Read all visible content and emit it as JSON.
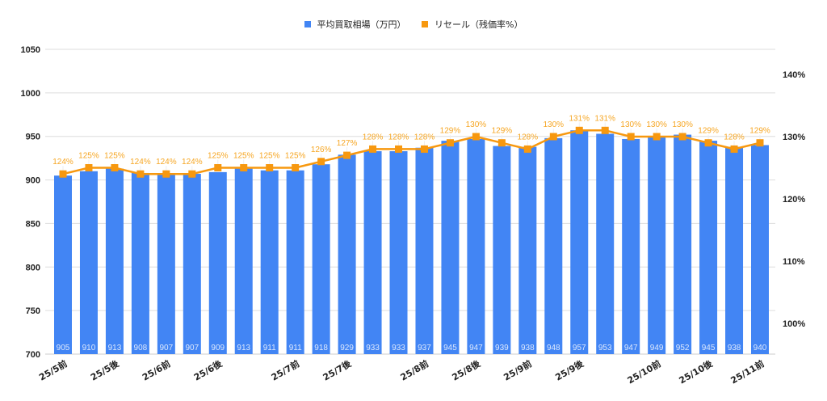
{
  "legend": {
    "series1_label": "平均買取相場（万円）",
    "series2_label": "リセール（残価率%）"
  },
  "colors": {
    "bar": "#4285f4",
    "line": "#f7980f",
    "line_label": "#f6a623",
    "bar_label": "#dce8fd",
    "grid": "#dddddd",
    "axis_text": "#222222"
  },
  "chart_data": {
    "type": "bar+line",
    "title": "",
    "xlabel": "",
    "ylabel_left": "平均買取相場（万円）",
    "ylabel_right": "リセール（残価率%）",
    "ylim_left": [
      700,
      1050
    ],
    "yticks_left": [
      700,
      750,
      800,
      850,
      900,
      950,
      1000,
      1050
    ],
    "ylim_right": [
      95,
      140
    ],
    "yticks_right": [
      "100%",
      "110%",
      "120%",
      "130%",
      "140%"
    ],
    "grid": true,
    "legend_position": "top",
    "x_tick_labels": [
      {
        "index": 0,
        "label": "25/5前"
      },
      {
        "index": 2,
        "label": "25/5後"
      },
      {
        "index": 4,
        "label": "25/6前"
      },
      {
        "index": 6,
        "label": "25/6後"
      },
      {
        "index": 9,
        "label": "25/7前"
      },
      {
        "index": 11,
        "label": "25/7後"
      },
      {
        "index": 14,
        "label": "25/8前"
      },
      {
        "index": 16,
        "label": "25/8後"
      },
      {
        "index": 18,
        "label": "25/9前"
      },
      {
        "index": 20,
        "label": "25/9後"
      },
      {
        "index": 23,
        "label": "25/10前"
      },
      {
        "index": 25,
        "label": "25/10後"
      },
      {
        "index": 27,
        "label": "25/11前"
      }
    ],
    "series": [
      {
        "name": "平均買取相場（万円）",
        "type": "bar",
        "axis": "left",
        "values": [
          905,
          910,
          913,
          908,
          907,
          907,
          909,
          913,
          911,
          911,
          918,
          929,
          933,
          933,
          937,
          945,
          947,
          939,
          938,
          948,
          957,
          953,
          947,
          949,
          952,
          945,
          938,
          940
        ]
      },
      {
        "name": "リセール（残価率%）",
        "type": "line",
        "axis": "right",
        "values": [
          124,
          125,
          125,
          124,
          124,
          124,
          125,
          125,
          125,
          125,
          126,
          127,
          128,
          128,
          128,
          129,
          130,
          129,
          128,
          130,
          131,
          131,
          130,
          130,
          130,
          129,
          128,
          129
        ]
      }
    ]
  }
}
